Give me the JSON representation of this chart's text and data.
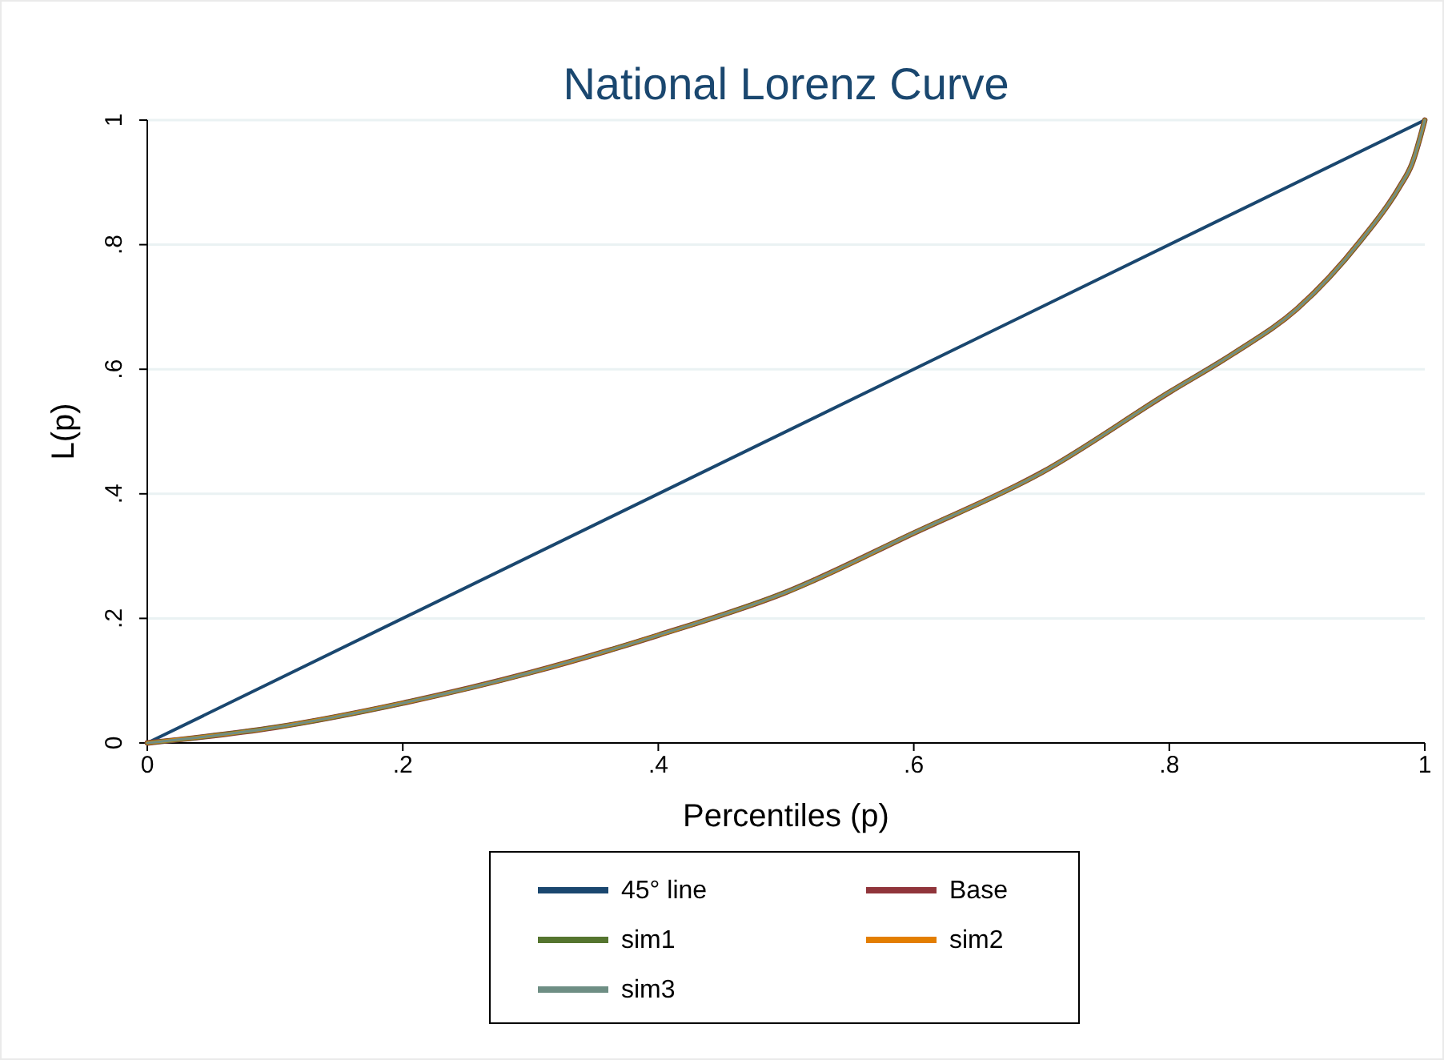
{
  "chart_data": {
    "type": "line",
    "title": "National Lorenz Curve",
    "xlabel": "Percentiles (p)",
    "ylabel": "L(p)",
    "xlim": [
      0,
      1
    ],
    "ylim": [
      0,
      1
    ],
    "xticks": [
      0,
      {
        "value": 0.2,
        "label": ".2"
      },
      {
        "value": 0.4,
        "label": ".4"
      },
      {
        "value": 0.6,
        "label": ".6"
      },
      {
        "value": 0.8,
        "label": ".8"
      },
      1
    ],
    "yticks": [
      0,
      {
        "value": 0.2,
        "label": ".2"
      },
      {
        "value": 0.4,
        "label": ".4"
      },
      {
        "value": 0.6,
        "label": ".6"
      },
      {
        "value": 0.8,
        "label": ".8"
      },
      1
    ],
    "grid": "y",
    "legend": "bottom",
    "line_style": "solid",
    "marker": "none",
    "series": [
      {
        "name": "45° line",
        "color": "#1a476f",
        "x": [
          0,
          1
        ],
        "values": [
          0,
          1
        ]
      },
      {
        "name": "Base",
        "color": "#90353b",
        "x": [
          0,
          0.1,
          0.2,
          0.3,
          0.4,
          0.5,
          0.6,
          0.7,
          0.8,
          0.85,
          0.9,
          0.95,
          0.98,
          0.99,
          1
        ],
        "values": [
          0,
          0.025,
          0.064,
          0.113,
          0.173,
          0.242,
          0.337,
          0.434,
          0.563,
          0.625,
          0.697,
          0.807,
          0.892,
          0.93,
          1
        ]
      },
      {
        "name": "sim1",
        "color": "#55752f",
        "x": [
          0,
          0.1,
          0.2,
          0.3,
          0.4,
          0.5,
          0.6,
          0.7,
          0.8,
          0.85,
          0.9,
          0.95,
          0.98,
          0.99,
          1
        ],
        "values": [
          0,
          0.025,
          0.064,
          0.113,
          0.173,
          0.242,
          0.337,
          0.434,
          0.563,
          0.625,
          0.697,
          0.807,
          0.892,
          0.93,
          1
        ]
      },
      {
        "name": "sim2",
        "color": "#e37e00",
        "x": [
          0,
          0.1,
          0.2,
          0.3,
          0.4,
          0.5,
          0.6,
          0.7,
          0.8,
          0.85,
          0.9,
          0.95,
          0.98,
          0.99,
          1
        ],
        "values": [
          0,
          0.025,
          0.064,
          0.113,
          0.173,
          0.242,
          0.337,
          0.434,
          0.563,
          0.625,
          0.697,
          0.807,
          0.892,
          0.93,
          1
        ]
      },
      {
        "name": "sim3",
        "color": "#6e8e84",
        "x": [
          0,
          0.1,
          0.2,
          0.3,
          0.4,
          0.5,
          0.6,
          0.7,
          0.8,
          0.85,
          0.9,
          0.95,
          0.98,
          0.99,
          1
        ],
        "values": [
          0,
          0.025,
          0.064,
          0.113,
          0.173,
          0.242,
          0.337,
          0.434,
          0.563,
          0.625,
          0.697,
          0.807,
          0.892,
          0.93,
          1
        ]
      }
    ]
  }
}
